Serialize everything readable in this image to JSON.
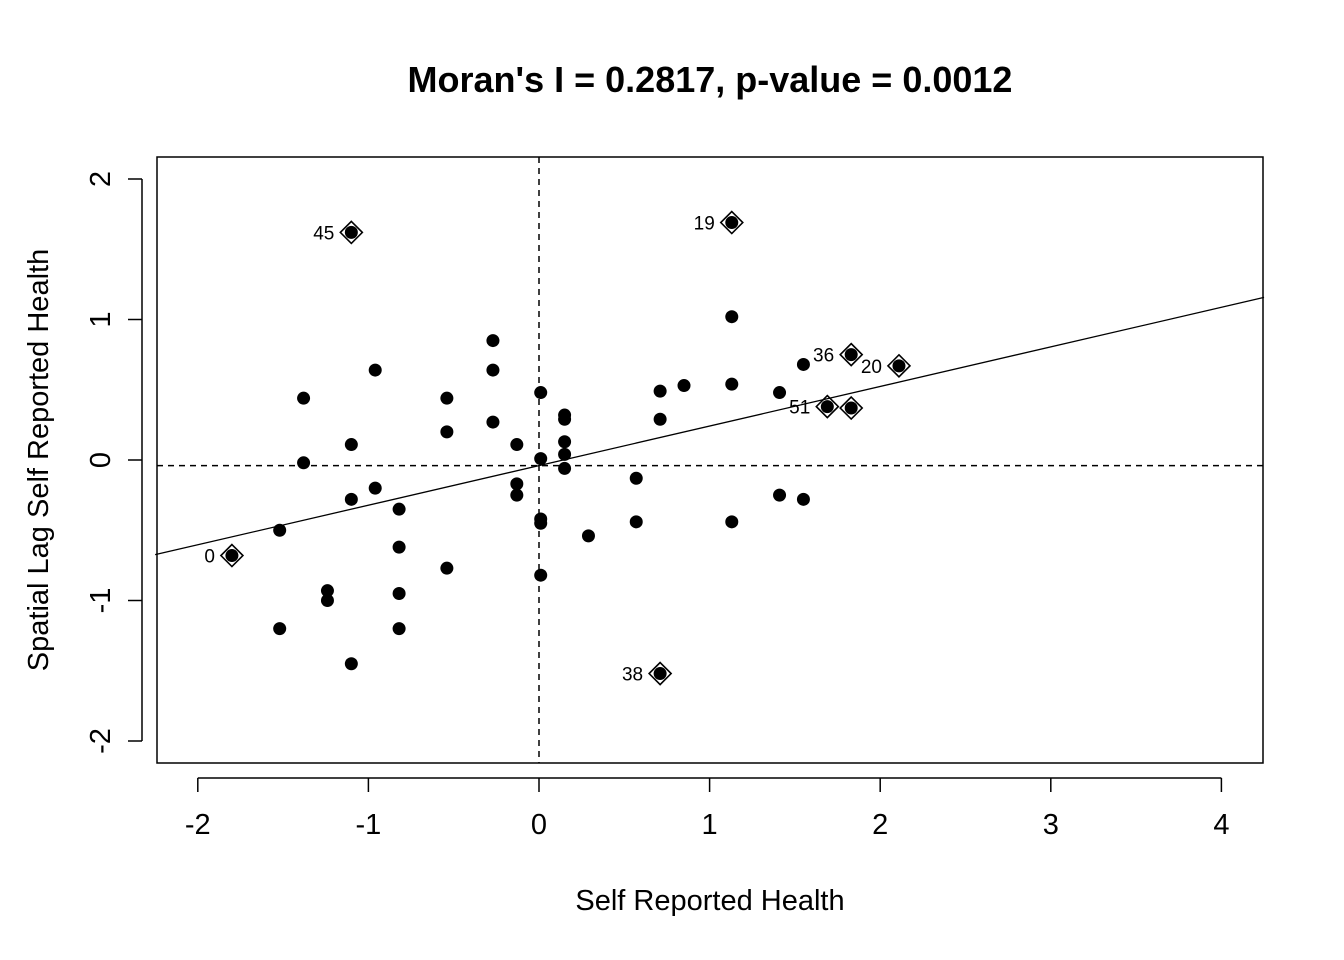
{
  "chart_data": {
    "type": "scatter",
    "title": "Moran's I = 0.2817, p-value = 0.0012",
    "xlabel": "Self Reported Health",
    "ylabel": "Spatial Lag Self Reported Health",
    "xlim": [
      -2.25,
      4.25
    ],
    "ylim": [
      -2.15,
      2.15
    ],
    "x_ticks": [
      -2,
      -1,
      0,
      1,
      2,
      3,
      4
    ],
    "y_ticks": [
      -2,
      -1,
      0,
      1,
      2
    ],
    "grid": false,
    "mean_x": 0,
    "mean_y": -0.04,
    "regression": {
      "intercept": -0.04,
      "slope": 0.2817
    },
    "points": [
      {
        "x": -1.52,
        "y": -0.5
      },
      {
        "x": -1.52,
        "y": -1.2
      },
      {
        "x": -1.38,
        "y": 0.44
      },
      {
        "x": -1.38,
        "y": -0.02
      },
      {
        "x": -1.24,
        "y": -0.93
      },
      {
        "x": -1.24,
        "y": -1.0
      },
      {
        "x": -1.1,
        "y": 0.11
      },
      {
        "x": -1.1,
        "y": -0.28
      },
      {
        "x": -1.1,
        "y": -1.45
      },
      {
        "x": -0.96,
        "y": 0.64
      },
      {
        "x": -0.96,
        "y": -0.2
      },
      {
        "x": -0.82,
        "y": -0.35
      },
      {
        "x": -0.82,
        "y": -0.62
      },
      {
        "x": -0.82,
        "y": -0.95
      },
      {
        "x": -0.82,
        "y": -1.2
      },
      {
        "x": -0.54,
        "y": 0.44
      },
      {
        "x": -0.54,
        "y": 0.2
      },
      {
        "x": -0.54,
        "y": -0.77
      },
      {
        "x": -0.27,
        "y": 0.85
      },
      {
        "x": -0.27,
        "y": 0.64
      },
      {
        "x": -0.27,
        "y": 0.27
      },
      {
        "x": -0.13,
        "y": 0.11
      },
      {
        "x": -0.13,
        "y": -0.17
      },
      {
        "x": -0.13,
        "y": -0.25
      },
      {
        "x": 0.01,
        "y": 0.48
      },
      {
        "x": 0.01,
        "y": 0.01
      },
      {
        "x": 0.01,
        "y": -0.42
      },
      {
        "x": 0.01,
        "y": -0.45
      },
      {
        "x": 0.01,
        "y": -0.82
      },
      {
        "x": 0.15,
        "y": 0.32
      },
      {
        "x": 0.15,
        "y": 0.29
      },
      {
        "x": 0.15,
        "y": 0.13
      },
      {
        "x": 0.15,
        "y": 0.04
      },
      {
        "x": 0.15,
        "y": -0.06
      },
      {
        "x": 0.29,
        "y": -0.54
      },
      {
        "x": 0.57,
        "y": -0.13
      },
      {
        "x": 0.57,
        "y": -0.44
      },
      {
        "x": 0.71,
        "y": 0.49
      },
      {
        "x": 0.71,
        "y": 0.29
      },
      {
        "x": 0.85,
        "y": 0.53
      },
      {
        "x": 1.13,
        "y": 1.02
      },
      {
        "x": 1.13,
        "y": 0.54
      },
      {
        "x": 1.13,
        "y": -0.44
      },
      {
        "x": 1.41,
        "y": 0.48
      },
      {
        "x": 1.41,
        "y": -0.25
      },
      {
        "x": 1.55,
        "y": 0.68
      },
      {
        "x": 1.55,
        "y": -0.28
      }
    ],
    "influential": [
      {
        "label": "0",
        "x": -1.8,
        "y": -0.68
      },
      {
        "label": "45",
        "x": -1.1,
        "y": 1.62
      },
      {
        "label": "19",
        "x": 1.13,
        "y": 1.69
      },
      {
        "label": "36",
        "x": 1.83,
        "y": 0.75
      },
      {
        "label": "20",
        "x": 2.11,
        "y": 0.67
      },
      {
        "label": "51",
        "x": 1.69,
        "y": 0.38
      },
      {
        "label": "",
        "x": 1.83,
        "y": 0.37
      },
      {
        "label": "38",
        "x": 0.71,
        "y": -1.52
      }
    ]
  }
}
